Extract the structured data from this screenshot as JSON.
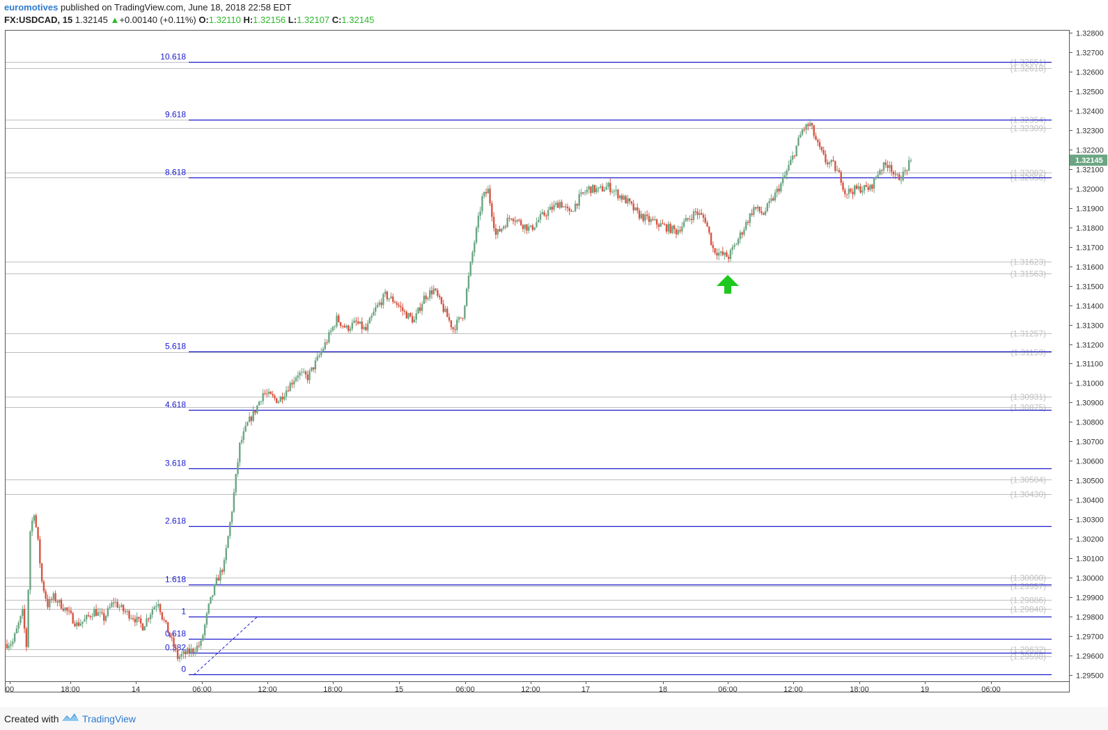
{
  "header": {
    "author": "euromotives",
    "published_text": "published on TradingView.com, June 18, 2018 22:58 EDT",
    "symbol": "FX:USDCAD, 15",
    "last": "1.32145",
    "arrow": "▲",
    "change": "+0.00140 (+0.11%)",
    "o_label": "O:",
    "o_val": "1.32110",
    "h_label": "H:",
    "h_val": "1.32156",
    "l_label": "L:",
    "l_val": "1.32107",
    "c_label": "C:",
    "c_val": "1.32145"
  },
  "footer": {
    "created_with": "Created with",
    "brand": "TradingView"
  },
  "colors": {
    "up": "#6ba583",
    "down": "#d75442",
    "fib": "#1a1acc",
    "gray_line": "#bdbdbd",
    "gray_label": "#c0c0c0",
    "price_tag": "#6ba583",
    "arrow": "#1ec81e"
  },
  "chart_data": {
    "type": "candlestick",
    "symbol": "FX:USDCAD",
    "interval": "15",
    "ylim": [
      1.2948,
      1.3282
    ],
    "y_ticks": [
      "1.32800",
      "1.32700",
      "1.32600",
      "1.32500",
      "1.32400",
      "1.32300",
      "1.32200",
      "1.32100",
      "1.32000",
      "1.31900",
      "1.31800",
      "1.31700",
      "1.31600",
      "1.31500",
      "1.31400",
      "1.31300",
      "1.31200",
      "1.31100",
      "1.31000",
      "1.30900",
      "1.30800",
      "1.30700",
      "1.30600",
      "1.30500",
      "1.30400",
      "1.30300",
      "1.30200",
      "1.30100",
      "1.30000",
      "1.29900",
      "1.29800",
      "1.29700",
      "1.29600",
      "1.29500"
    ],
    "x_ticks": [
      "00",
      "18:00",
      "14",
      "06:00",
      "12:00",
      "18:00",
      "15",
      "06:00",
      "12:00",
      "17",
      "18",
      "06:00",
      "12:00",
      "18:00",
      "19",
      "06:00"
    ],
    "current_price": "1.32145",
    "fib_levels": [
      {
        "label": "10.618",
        "price": 1.32651
      },
      {
        "label": "9.618",
        "price": 1.32354
      },
      {
        "label": "8.618",
        "price": 1.32056
      },
      {
        "label": "5.618",
        "price": 1.31161
      },
      {
        "label": "4.618",
        "price": 1.30862
      },
      {
        "label": "3.618",
        "price": 1.30563
      },
      {
        "label": "2.618",
        "price": 1.30264
      },
      {
        "label": "1.618",
        "price": 1.29966
      },
      {
        "label": "1",
        "price": 1.29801
      },
      {
        "label": "0.618",
        "price": 1.29686
      },
      {
        "label": "0.382",
        "price": 1.29616
      },
      {
        "label": "0",
        "price": 1.29502
      }
    ],
    "horizontal_levels": [
      "(1.32651)",
      "(1.32618)",
      "(1.32354)",
      "(1.32309)",
      "(1.32082)",
      "(1.32056)",
      "(1.31623)",
      "(1.31563)",
      "(1.31257)",
      "(1.31159)",
      "(1.30931)",
      "(1.30875)",
      "(1.30504)",
      "(1.30430)",
      "(1.30000)",
      "(1.29957)",
      "(1.29886)",
      "(1.29840)",
      "(1.29632)",
      "(1.29598)"
    ],
    "horizontal_level_values": [
      1.32651,
      1.32618,
      1.32354,
      1.32309,
      1.32082,
      1.32056,
      1.31623,
      1.31563,
      1.31257,
      1.31159,
      1.30931,
      1.30875,
      1.30504,
      1.3043,
      1.3,
      1.29957,
      1.29886,
      1.2984,
      1.29632,
      1.29598
    ],
    "path": [
      [
        0,
        1.2966
      ],
      [
        3,
        1.2967
      ],
      [
        8,
        1.2982
      ],
      [
        10,
        1.2965
      ],
      [
        12,
        1.3024
      ],
      [
        14,
        1.3034
      ],
      [
        16,
        1.3018
      ],
      [
        18,
        1.2998
      ],
      [
        21,
        1.2986
      ],
      [
        24,
        1.299
      ],
      [
        30,
        1.2984
      ],
      [
        36,
        1.2976
      ],
      [
        40,
        1.2978
      ],
      [
        45,
        1.2983
      ],
      [
        50,
        1.2979
      ],
      [
        55,
        1.2988
      ],
      [
        60,
        1.2983
      ],
      [
        65,
        1.298
      ],
      [
        70,
        1.2975
      ],
      [
        75,
        1.2984
      ],
      [
        78,
        1.2988
      ],
      [
        80,
        1.298
      ],
      [
        84,
        1.297
      ],
      [
        88,
        1.2959
      ],
      [
        92,
        1.2961
      ],
      [
        96,
        1.2963
      ],
      [
        100,
        1.2966
      ],
      [
        104,
        1.2985
      ],
      [
        108,
        1.2998
      ],
      [
        112,
        1.3007
      ],
      [
        116,
        1.3035
      ],
      [
        120,
        1.3068
      ],
      [
        124,
        1.3079
      ],
      [
        128,
        1.3086
      ],
      [
        132,
        1.3095
      ],
      [
        136,
        1.3093
      ],
      [
        140,
        1.3091
      ],
      [
        145,
        1.3098
      ],
      [
        150,
        1.3105
      ],
      [
        155,
        1.3103
      ],
      [
        160,
        1.3112
      ],
      [
        165,
        1.3122
      ],
      [
        170,
        1.3133
      ],
      [
        175,
        1.3128
      ],
      [
        180,
        1.3131
      ],
      [
        185,
        1.3127
      ],
      [
        190,
        1.3138
      ],
      [
        195,
        1.3145
      ],
      [
        200,
        1.3142
      ],
      [
        205,
        1.3136
      ],
      [
        210,
        1.3132
      ],
      [
        215,
        1.3144
      ],
      [
        220,
        1.3148
      ],
      [
        225,
        1.3138
      ],
      [
        230,
        1.3128
      ],
      [
        235,
        1.3135
      ],
      [
        240,
        1.3167
      ],
      [
        245,
        1.3195
      ],
      [
        248,
        1.3199
      ],
      [
        252,
        1.3176
      ],
      [
        256,
        1.3181
      ],
      [
        260,
        1.3186
      ],
      [
        265,
        1.3182
      ],
      [
        270,
        1.3179
      ],
      [
        275,
        1.3185
      ],
      [
        280,
        1.3189
      ],
      [
        285,
        1.3193
      ],
      [
        290,
        1.3187
      ],
      [
        295,
        1.3195
      ],
      [
        300,
        1.32
      ],
      [
        305,
        1.3199
      ],
      [
        310,
        1.3201
      ],
      [
        315,
        1.3197
      ],
      [
        320,
        1.3193
      ],
      [
        325,
        1.3187
      ],
      [
        330,
        1.3184
      ],
      [
        335,
        1.3182
      ],
      [
        340,
        1.318
      ],
      [
        345,
        1.3178
      ],
      [
        350,
        1.3183
      ],
      [
        355,
        1.3188
      ],
      [
        360,
        1.3184
      ],
      [
        364,
        1.3169
      ],
      [
        368,
        1.3166
      ],
      [
        372,
        1.3165
      ],
      [
        376,
        1.3172
      ],
      [
        380,
        1.318
      ],
      [
        385,
        1.319
      ],
      [
        390,
        1.3187
      ],
      [
        395,
        1.3195
      ],
      [
        400,
        1.3204
      ],
      [
        405,
        1.3216
      ],
      [
        410,
        1.323
      ],
      [
        414,
        1.3233
      ],
      [
        418,
        1.3222
      ],
      [
        422,
        1.3214
      ],
      [
        426,
        1.3212
      ],
      [
        430,
        1.3205
      ],
      [
        432,
        1.3198
      ],
      [
        436,
        1.3199
      ],
      [
        440,
        1.32
      ],
      [
        445,
        1.32
      ],
      [
        450,
        1.321
      ],
      [
        455,
        1.3213
      ],
      [
        458,
        1.3205
      ],
      [
        462,
        1.3207
      ],
      [
        466,
        1.3214
      ]
    ]
  }
}
